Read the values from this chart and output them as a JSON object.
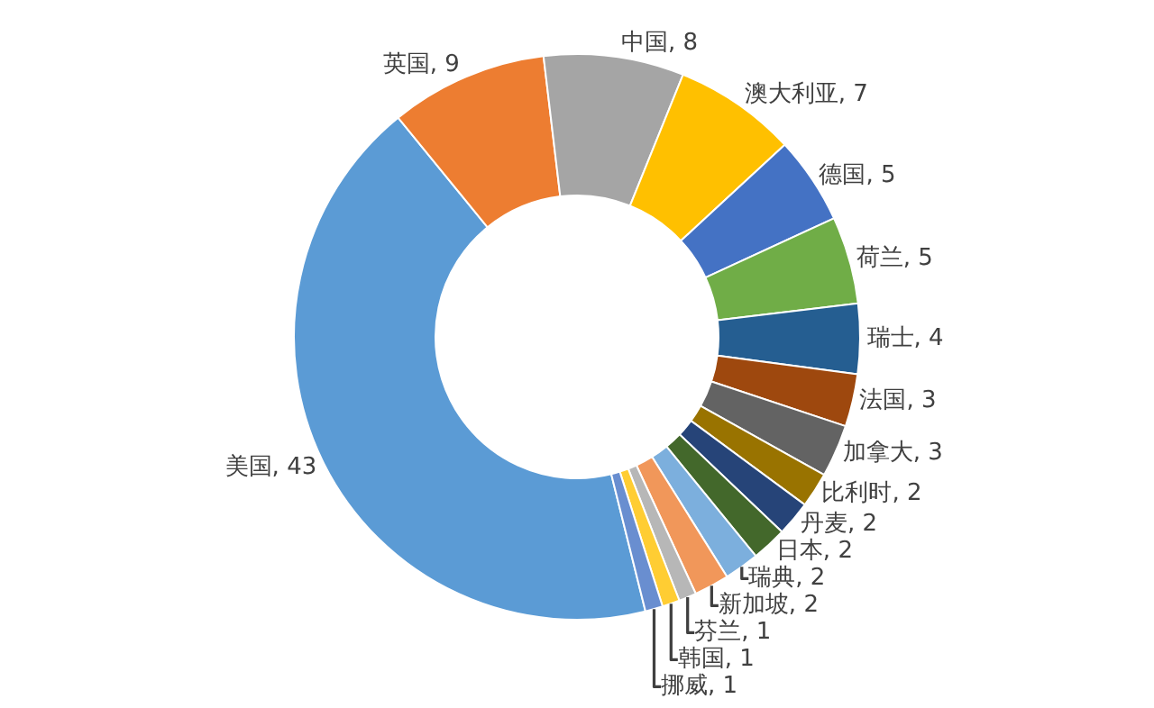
{
  "chart_data": {
    "type": "donut",
    "categories": [
      "美国, 43",
      "英国, 9",
      "中国, 8",
      "澳大利亚, 7",
      "德国, 5",
      "荷兰, 5",
      "瑞士, 4",
      "法国, 3",
      "加拿大, 3",
      "比利时, 2",
      "丹麦, 2",
      "日本, 2",
      "瑞典, 2",
      "新加坡, 2",
      "芬兰, 1",
      "韩国, 1",
      "挪威, 1"
    ],
    "values": [
      43,
      9,
      8,
      7,
      5,
      5,
      4,
      3,
      3,
      2,
      2,
      2,
      2,
      2,
      1,
      1,
      1
    ],
    "colors": [
      "#5b9bd5",
      "#ed7d31",
      "#a5a5a5",
      "#ffc000",
      "#4472c4",
      "#70ad47",
      "#255e91",
      "#9e480e",
      "#636363",
      "#997300",
      "#264478",
      "#43682b",
      "#7cafdd",
      "#f1975a",
      "#b7b7b7",
      "#ffcd33",
      "#698ed0"
    ],
    "legend": false
  }
}
